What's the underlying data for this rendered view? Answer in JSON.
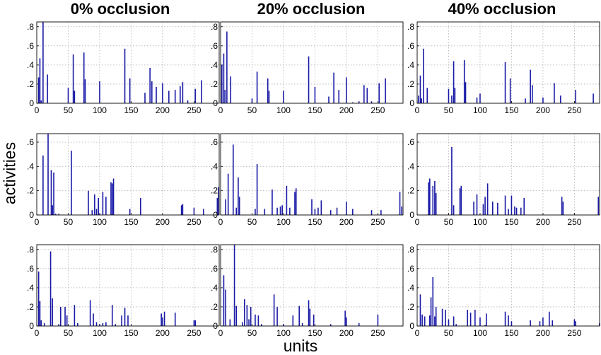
{
  "figure": {
    "column_titles": [
      "0% occlusion",
      "20% occlusion",
      "40% occlusion"
    ],
    "ylabel": "activities",
    "xlabel": "units",
    "bar_color": "#1a1aa6",
    "grid_color": "#b0b0b0"
  },
  "chart_data": [
    {
      "type": "bar",
      "row": 0,
      "col": 0,
      "title": "0% occlusion",
      "xlim": [
        0,
        290
      ],
      "ylim": [
        0,
        0.85
      ],
      "xticks": [
        0,
        50,
        100,
        150,
        200,
        250
      ],
      "yticks": [
        0,
        0.2,
        0.4,
        0.6,
        0.8
      ],
      "x": [
        3,
        5,
        7,
        10,
        17,
        50,
        58,
        60,
        75,
        77,
        100,
        140,
        148,
        172,
        180,
        183,
        190,
        200,
        210,
        220,
        228,
        232,
        240,
        252,
        262
      ],
      "values": [
        0.27,
        0.47,
        0.03,
        0.85,
        0.3,
        0.16,
        0.51,
        0.13,
        0.53,
        0.25,
        0.23,
        0.57,
        0.26,
        0.11,
        0.37,
        0.23,
        0.17,
        0.21,
        0.13,
        0.14,
        0.18,
        0.22,
        0.03,
        0.15,
        0.24
      ]
    },
    {
      "type": "bar",
      "row": 0,
      "col": 1,
      "title": "20% occlusion",
      "xlim": [
        0,
        290
      ],
      "ylim": [
        0,
        0.85
      ],
      "xticks": [
        0,
        50,
        100,
        150,
        200,
        250
      ],
      "yticks": [
        0,
        0.2,
        0.4,
        0.6,
        0.8
      ],
      "x": [
        2,
        5,
        7,
        10,
        16,
        50,
        58,
        75,
        77,
        100,
        140,
        150,
        172,
        180,
        188,
        200,
        210,
        220,
        228,
        233,
        240,
        252,
        262
      ],
      "values": [
        0.4,
        0.52,
        0.14,
        0.75,
        0.28,
        0.05,
        0.33,
        0.26,
        0.13,
        0.13,
        0.49,
        0.17,
        0.07,
        0.32,
        0.14,
        0.27,
        0.01,
        0.02,
        0.19,
        0.16,
        0.02,
        0.21,
        0.26
      ]
    },
    {
      "type": "bar",
      "row": 0,
      "col": 2,
      "title": "40% occlusion",
      "xlim": [
        0,
        290
      ],
      "ylim": [
        0,
        0.85
      ],
      "xticks": [
        0,
        50,
        100,
        150,
        200,
        250
      ],
      "yticks": [
        0,
        0.2,
        0.4,
        0.6,
        0.8
      ],
      "x": [
        2,
        5,
        7,
        10,
        16,
        50,
        55,
        58,
        60,
        75,
        77,
        95,
        100,
        140,
        148,
        172,
        180,
        183,
        200,
        218,
        228,
        252,
        280
      ],
      "values": [
        0.08,
        0.29,
        0.05,
        0.57,
        0.16,
        0.15,
        0.08,
        0.44,
        0.16,
        0.45,
        0.22,
        0.06,
        0.1,
        0.43,
        0.26,
        0.05,
        0.35,
        0.19,
        0.06,
        0.21,
        0.08,
        0.14,
        0.1
      ]
    },
    {
      "type": "bar",
      "row": 1,
      "col": 0,
      "title": "",
      "xlim": [
        0,
        290
      ],
      "ylim": [
        0,
        0.67
      ],
      "xticks": [
        0,
        50,
        100,
        150,
        200,
        250
      ],
      "yticks": [
        0,
        0.2,
        0.4,
        0.6
      ],
      "x": [
        10,
        18,
        23,
        25,
        27,
        30,
        35,
        55,
        82,
        88,
        92,
        95,
        98,
        100,
        105,
        110,
        118,
        120,
        122,
        148,
        165,
        230,
        232,
        250,
        265,
        287,
        289
      ],
      "values": [
        0.49,
        0.67,
        0.37,
        0.08,
        0.35,
        0.01,
        0.01,
        0.53,
        0.2,
        0.04,
        0.17,
        0.05,
        0.14,
        0.01,
        0.19,
        0.15,
        0.27,
        0.26,
        0.3,
        0.05,
        0.14,
        0.08,
        0.09,
        0.06,
        0.05,
        0.14,
        0.23
      ]
    },
    {
      "type": "bar",
      "row": 1,
      "col": 1,
      "title": "",
      "xlim": [
        0,
        290
      ],
      "ylim": [
        0,
        0.67
      ],
      "xticks": [
        0,
        50,
        100,
        150,
        200,
        250
      ],
      "yticks": [
        0,
        0.2,
        0.4,
        0.6
      ],
      "x": [
        8,
        12,
        20,
        25,
        28,
        30,
        55,
        58,
        70,
        82,
        90,
        95,
        98,
        105,
        110,
        118,
        120,
        145,
        150,
        155,
        160,
        175,
        185,
        200,
        210,
        240,
        255,
        285,
        288
      ],
      "values": [
        0.13,
        0.34,
        0.58,
        0.06,
        0.31,
        0.15,
        0.05,
        0.42,
        0.05,
        0.21,
        0.06,
        0.07,
        0.08,
        0.24,
        0.06,
        0.19,
        0.22,
        0.13,
        0.05,
        0.06,
        0.12,
        0.04,
        0.06,
        0.11,
        0.05,
        0.04,
        0.04,
        0.19,
        0.07
      ]
    },
    {
      "type": "bar",
      "row": 1,
      "col": 2,
      "title": "40% occlusion",
      "xlim": [
        0,
        290
      ],
      "ylim": [
        0,
        0.67
      ],
      "xticks": [
        0,
        50,
        100,
        150,
        200,
        250
      ],
      "yticks": [
        0,
        0.2,
        0.4,
        0.6
      ],
      "x": [
        18,
        20,
        25,
        28,
        30,
        55,
        58,
        68,
        70,
        90,
        95,
        105,
        108,
        112,
        120,
        128,
        140,
        145,
        150,
        155,
        158,
        165,
        170,
        230,
        232,
        288
      ],
      "values": [
        0.27,
        0.3,
        0.24,
        0.28,
        0.18,
        0.56,
        0.08,
        0.22,
        0.24,
        0.11,
        0.17,
        0.09,
        0.15,
        0.26,
        0.11,
        0.1,
        0.16,
        0.05,
        0.16,
        0.07,
        0.06,
        0.06,
        0.14,
        0.15,
        0.11,
        0.15
      ]
    },
    {
      "type": "bar",
      "row": 2,
      "col": 0,
      "title": "",
      "xlim": [
        0,
        290
      ],
      "ylim": [
        0,
        0.85
      ],
      "xticks": [
        0,
        50,
        100,
        150,
        200,
        250
      ],
      "yticks": [
        0,
        0.2,
        0.4,
        0.6,
        0.8
      ],
      "x": [
        3,
        5,
        7,
        12,
        22,
        25,
        35,
        38,
        45,
        48,
        60,
        65,
        85,
        90,
        95,
        100,
        105,
        110,
        120,
        125,
        135,
        140,
        145,
        198,
        200,
        203,
        220,
        250,
        252
      ],
      "values": [
        0.57,
        0.26,
        0.06,
        0.03,
        0.78,
        0.29,
        0.02,
        0.2,
        0.2,
        0.11,
        0.22,
        0.03,
        0.27,
        0.13,
        0.04,
        0.02,
        0.03,
        0.04,
        0.22,
        0.02,
        0.11,
        0.19,
        0.11,
        0.13,
        0.09,
        0.15,
        0.14,
        0.06,
        0.06
      ]
    },
    {
      "type": "bar",
      "row": 2,
      "col": 1,
      "title": "",
      "xlim": [
        0,
        290
      ],
      "ylim": [
        0,
        0.85
      ],
      "xticks": [
        0,
        50,
        100,
        150,
        200,
        250
      ],
      "yticks": [
        0,
        0.2,
        0.4,
        0.6,
        0.8
      ],
      "x": [
        5,
        8,
        15,
        22,
        25,
        35,
        38,
        42,
        45,
        48,
        55,
        60,
        65,
        85,
        90,
        100,
        115,
        125,
        130,
        140,
        142,
        148,
        175,
        198,
        200,
        220,
        250
      ],
      "values": [
        0.53,
        0.38,
        0.07,
        0.85,
        0.21,
        0.04,
        0.28,
        0.22,
        0.07,
        0.2,
        0.12,
        0.11,
        0.02,
        0.33,
        0.2,
        0.02,
        0.11,
        0.21,
        0.03,
        0.27,
        0.18,
        0.12,
        0.02,
        0.16,
        0.09,
        0.03,
        0.12
      ]
    },
    {
      "type": "bar",
      "row": 2,
      "col": 2,
      "title": "",
      "xlim": [
        0,
        290
      ],
      "ylim": [
        0,
        0.85
      ],
      "xticks": [
        0,
        50,
        100,
        150,
        200,
        250
      ],
      "yticks": [
        0,
        0.2,
        0.4,
        0.6,
        0.8
      ],
      "x": [
        5,
        8,
        12,
        20,
        22,
        25,
        28,
        30,
        40,
        45,
        50,
        58,
        62,
        80,
        85,
        92,
        100,
        108,
        110,
        140,
        145,
        150,
        180,
        195,
        200,
        210,
        215,
        250,
        252,
        290
      ],
      "values": [
        0.33,
        0.12,
        0.1,
        0.11,
        0.3,
        0.51,
        0.1,
        0.2,
        0.18,
        0.17,
        0.07,
        0.1,
        0.02,
        0.17,
        0.14,
        0.17,
        0.09,
        0.01,
        0.13,
        0.15,
        0.11,
        0.05,
        0.06,
        0.05,
        0.09,
        0.15,
        0.06,
        0.07,
        0.05,
        0.03
      ]
    }
  ]
}
